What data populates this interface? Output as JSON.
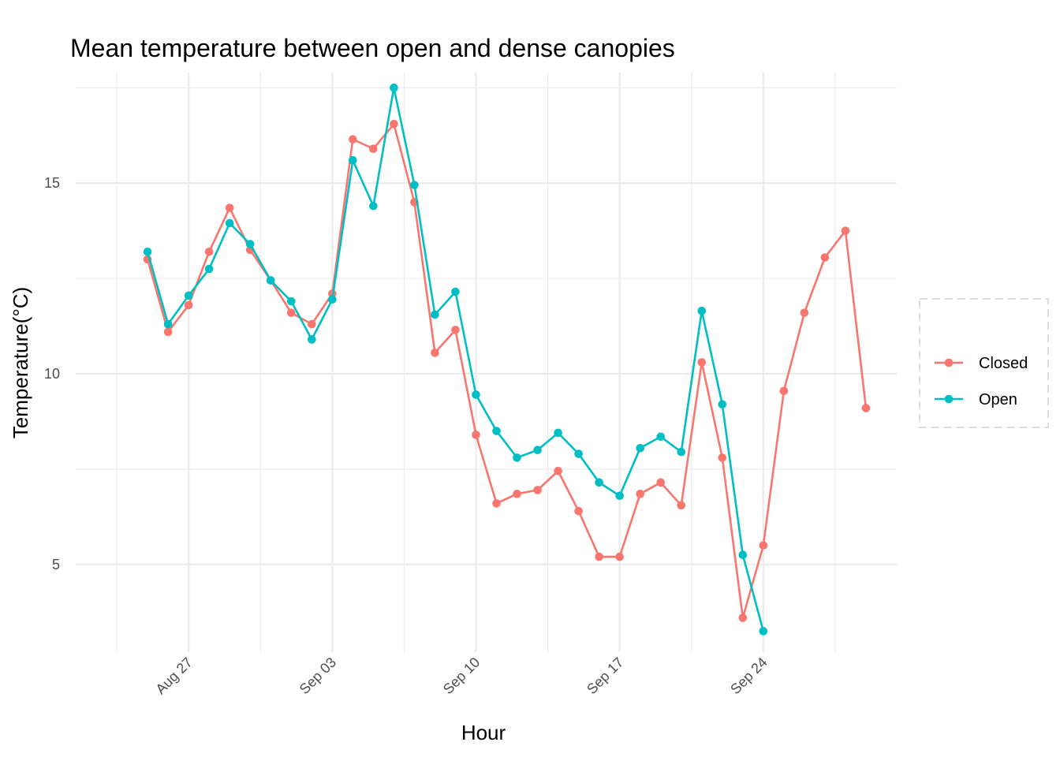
{
  "chart_data": {
    "type": "line",
    "title": "Mean temperature between open and dense canopies",
    "xlabel": "Hour",
    "ylabel": "Temperature(°C)",
    "x_tick_labels": [
      "Aug 27",
      "Sep 03",
      "Sep 10",
      "Sep 17",
      "Sep 24"
    ],
    "x_tick_dates": [
      "2022-08-27",
      "2022-09-03",
      "2022-09-10",
      "2022-09-17",
      "2022-09-24"
    ],
    "y_ticks": [
      5,
      10,
      15
    ],
    "xlim": [
      "2022-08-21T12:00",
      "2022-09-30T12:00"
    ],
    "ylim": [
      2.7,
      17.9
    ],
    "grid": true,
    "legend_position": "right",
    "series": [
      {
        "name": "Closed",
        "color": "#F8766D",
        "points": [
          [
            "2022-08-25",
            13.0
          ],
          [
            "2022-08-26",
            11.1
          ],
          [
            "2022-08-27",
            11.8
          ],
          [
            "2022-08-28",
            13.2
          ],
          [
            "2022-08-29",
            14.35
          ],
          [
            "2022-08-30",
            13.25
          ],
          [
            "2022-08-31",
            12.45
          ],
          [
            "2022-09-01",
            11.6
          ],
          [
            "2022-09-02",
            11.3
          ],
          [
            "2022-09-03",
            12.1
          ],
          [
            "2022-09-04",
            16.15
          ],
          [
            "2022-09-05",
            15.9
          ],
          [
            "2022-09-06",
            16.55
          ],
          [
            "2022-09-07",
            14.5
          ],
          [
            "2022-09-08",
            10.55
          ],
          [
            "2022-09-09",
            11.15
          ],
          [
            "2022-09-10",
            8.4
          ],
          [
            "2022-09-11",
            6.6
          ],
          [
            "2022-09-12",
            6.85
          ],
          [
            "2022-09-13",
            6.95
          ],
          [
            "2022-09-14",
            7.45
          ],
          [
            "2022-09-15",
            6.4
          ],
          [
            "2022-09-16",
            5.2
          ],
          [
            "2022-09-17",
            5.2
          ],
          [
            "2022-09-18",
            6.85
          ],
          [
            "2022-09-19",
            7.15
          ],
          [
            "2022-09-20",
            6.55
          ],
          [
            "2022-09-21",
            10.3
          ],
          [
            "2022-09-22",
            7.8
          ],
          [
            "2022-09-23",
            3.6
          ],
          [
            "2022-09-24",
            5.5
          ],
          [
            "2022-09-25",
            9.55
          ],
          [
            "2022-09-26",
            11.6
          ],
          [
            "2022-09-27",
            13.05
          ],
          [
            "2022-09-28",
            13.75
          ],
          [
            "2022-09-29",
            9.1
          ]
        ]
      },
      {
        "name": "Open",
        "color": "#00BFC4",
        "points": [
          [
            "2022-08-25",
            13.2
          ],
          [
            "2022-08-26",
            11.3
          ],
          [
            "2022-08-27",
            12.05
          ],
          [
            "2022-08-28",
            12.75
          ],
          [
            "2022-08-29",
            13.95
          ],
          [
            "2022-08-30",
            13.4
          ],
          [
            "2022-08-31",
            12.45
          ],
          [
            "2022-09-01",
            11.9
          ],
          [
            "2022-09-02",
            10.9
          ],
          [
            "2022-09-03",
            11.95
          ],
          [
            "2022-09-04",
            15.6
          ],
          [
            "2022-09-05",
            14.4
          ],
          [
            "2022-09-06",
            17.5
          ],
          [
            "2022-09-07",
            14.95
          ],
          [
            "2022-09-08",
            11.55
          ],
          [
            "2022-09-09",
            12.15
          ],
          [
            "2022-09-10",
            9.45
          ],
          [
            "2022-09-11",
            8.5
          ],
          [
            "2022-09-12",
            7.8
          ],
          [
            "2022-09-13",
            8.0
          ],
          [
            "2022-09-14",
            8.45
          ],
          [
            "2022-09-15",
            7.9
          ],
          [
            "2022-09-16",
            7.15
          ],
          [
            "2022-09-17",
            6.8
          ],
          [
            "2022-09-18",
            8.05
          ],
          [
            "2022-09-19",
            8.35
          ],
          [
            "2022-09-20",
            7.95
          ],
          [
            "2022-09-21",
            11.65
          ],
          [
            "2022-09-22",
            9.2
          ],
          [
            "2022-09-23",
            5.25
          ],
          [
            "2022-09-24",
            3.25
          ]
        ]
      }
    ]
  }
}
